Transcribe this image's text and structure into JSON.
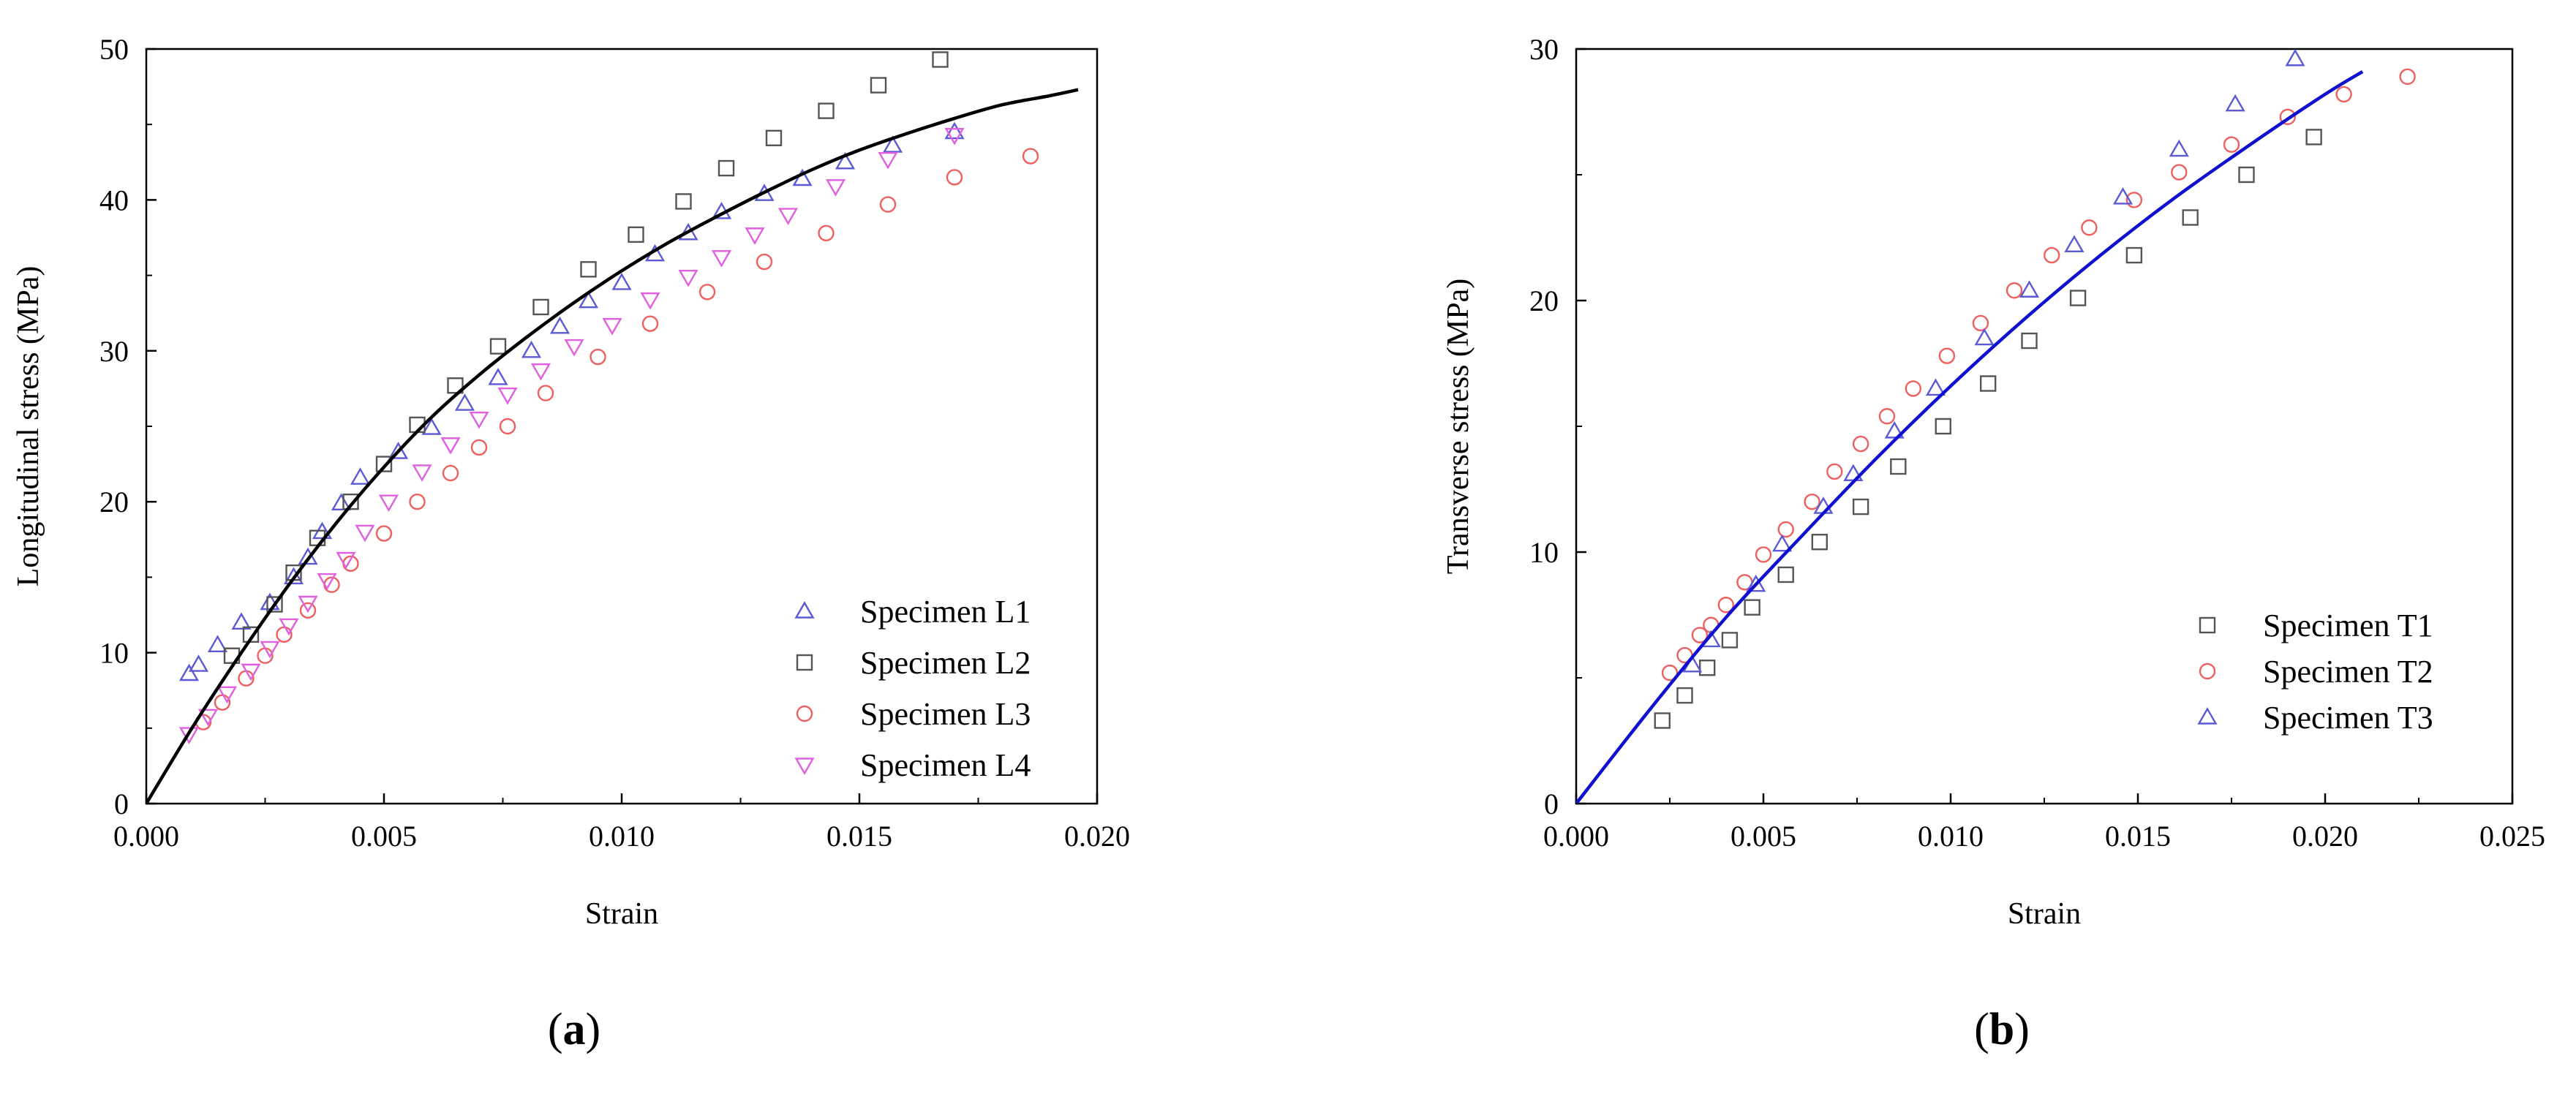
{
  "chart_data": [
    {
      "panel_label": "(a)",
      "type": "scatter",
      "xlabel": "Strain",
      "ylabel": "Longitudinal stress (MPa)",
      "xlim": [
        0,
        0.02
      ],
      "ylim": [
        0,
        50
      ],
      "xticks": [
        0,
        0.005,
        0.01,
        0.015,
        0.02
      ],
      "xtick_labels": [
        "0.000",
        "0.005",
        "0.010",
        "0.015",
        "0.020"
      ],
      "yticks": [
        0,
        10,
        20,
        30,
        40,
        50
      ],
      "ytick_labels": [
        "0",
        "10",
        "20",
        "30",
        "40",
        "50"
      ],
      "legend_position": "bottom-right",
      "series": [
        {
          "name": "Specimen L1",
          "marker": "triangle-up",
          "color": "#5a5ad6",
          "x": [
            0.0009,
            0.0011,
            0.0015,
            0.002,
            0.0026,
            0.0031,
            0.0034,
            0.0037,
            0.0041,
            0.0045,
            0.0053,
            0.006,
            0.0067,
            0.0074,
            0.0081,
            0.0087,
            0.0093,
            0.01,
            0.0107,
            0.0114,
            0.0121,
            0.013,
            0.0138,
            0.0147,
            0.0157,
            0.017
          ],
          "y": [
            8.6,
            9.2,
            10.5,
            12.0,
            13.3,
            15.0,
            16.3,
            18.0,
            19.9,
            21.6,
            23.3,
            24.9,
            26.5,
            28.2,
            30.0,
            31.6,
            33.3,
            34.5,
            36.4,
            37.8,
            39.2,
            40.4,
            41.4,
            42.5,
            43.6,
            44.5
          ]
        },
        {
          "name": "Specimen L2",
          "marker": "square",
          "color": "#555555",
          "x": [
            0.0018,
            0.0022,
            0.0027,
            0.0031,
            0.0036,
            0.0043,
            0.005,
            0.0057,
            0.0065,
            0.0074,
            0.0083,
            0.0093,
            0.0103,
            0.0113,
            0.0122,
            0.0132,
            0.0143,
            0.0154,
            0.0167
          ],
          "y": [
            9.8,
            11.2,
            13.2,
            15.3,
            17.6,
            20.0,
            22.5,
            25.1,
            27.7,
            30.3,
            32.9,
            35.4,
            37.7,
            39.9,
            42.1,
            44.1,
            45.9,
            47.6,
            49.3
          ]
        },
        {
          "name": "Specimen L3",
          "marker": "circle",
          "color": "#ee6060",
          "x": [
            0.0012,
            0.0016,
            0.0021,
            0.0025,
            0.0029,
            0.0034,
            0.0039,
            0.0043,
            0.005,
            0.0057,
            0.0064,
            0.007,
            0.0076,
            0.0084,
            0.0095,
            0.0106,
            0.0118,
            0.013,
            0.0143,
            0.0156,
            0.017,
            0.0186
          ],
          "y": [
            5.4,
            6.7,
            8.3,
            9.8,
            11.2,
            12.8,
            14.5,
            15.9,
            17.9,
            20.0,
            21.9,
            23.6,
            25.0,
            27.2,
            29.6,
            31.8,
            33.9,
            35.9,
            37.8,
            39.7,
            41.5,
            42.9
          ]
        },
        {
          "name": "Specimen L4",
          "marker": "triangle-down",
          "color": "#e060e0",
          "x": [
            0.0009,
            0.0013,
            0.0017,
            0.0022,
            0.0026,
            0.003,
            0.0034,
            0.0038,
            0.0042,
            0.0046,
            0.0051,
            0.0058,
            0.0064,
            0.007,
            0.0076,
            0.0083,
            0.009,
            0.0098,
            0.0106,
            0.0114,
            0.0121,
            0.0128,
            0.0135,
            0.0145,
            0.0156,
            0.017
          ],
          "y": [
            4.6,
            5.8,
            7.3,
            8.8,
            10.3,
            11.8,
            13.3,
            14.8,
            16.2,
            18.0,
            20.0,
            22.0,
            23.8,
            25.5,
            27.1,
            28.7,
            30.3,
            31.7,
            33.4,
            34.9,
            36.2,
            37.7,
            39.0,
            40.9,
            42.7,
            44.3
          ]
        }
      ],
      "fit_curve": {
        "color": "#000000",
        "x_max": 0.0196,
        "x": [
          0,
          0.001,
          0.002,
          0.003,
          0.004,
          0.005,
          0.006,
          0.007,
          0.008,
          0.009,
          0.01,
          0.011,
          0.012,
          0.013,
          0.014,
          0.015,
          0.016,
          0.017,
          0.018,
          0.019,
          0.0196
        ],
        "y": [
          0,
          5.2,
          10.0,
          14.5,
          18.6,
          22.3,
          25.6,
          28.4,
          30.9,
          33.2,
          35.3,
          37.2,
          38.9,
          40.5,
          42.0,
          43.3,
          44.4,
          45.4,
          46.3,
          46.9,
          47.3
        ]
      }
    },
    {
      "panel_label": "(b)",
      "type": "scatter",
      "xlabel": "Strain",
      "ylabel": "Transverse stress (MPa)",
      "xlim": [
        0,
        0.025
      ],
      "ylim": [
        0,
        30
      ],
      "xticks": [
        0,
        0.005,
        0.01,
        0.015,
        0.02,
        0.025
      ],
      "xtick_labels": [
        "0.000",
        "0.005",
        "0.010",
        "0.015",
        "0.020",
        "0.025"
      ],
      "yticks": [
        0,
        10,
        20,
        30
      ],
      "ytick_labels": [
        "0",
        "10",
        "20",
        "30"
      ],
      "legend_position": "bottom-right",
      "series": [
        {
          "name": "Specimen T1",
          "marker": "square",
          "color": "#555555",
          "x": [
            0.0023,
            0.0029,
            0.0035,
            0.0041,
            0.0047,
            0.0056,
            0.0065,
            0.0076,
            0.0086,
            0.0098,
            0.011,
            0.0121,
            0.0134,
            0.0149,
            0.0164,
            0.0179,
            0.0197
          ],
          "y": [
            3.3,
            4.3,
            5.4,
            6.5,
            7.8,
            9.1,
            10.4,
            11.8,
            13.4,
            15.0,
            16.7,
            18.4,
            20.1,
            21.8,
            23.3,
            25.0,
            26.5
          ]
        },
        {
          "name": "Specimen T2",
          "marker": "circle",
          "color": "#ee6060",
          "x": [
            0.0025,
            0.0029,
            0.0033,
            0.0036,
            0.004,
            0.0045,
            0.005,
            0.0056,
            0.0063,
            0.0069,
            0.0076,
            0.0083,
            0.009,
            0.0099,
            0.0108,
            0.0117,
            0.0127,
            0.0137,
            0.0149,
            0.0161,
            0.0175,
            0.019,
            0.0205,
            0.0222
          ],
          "y": [
            5.2,
            5.9,
            6.7,
            7.1,
            7.9,
            8.8,
            9.9,
            10.9,
            12.0,
            13.2,
            14.3,
            15.4,
            16.5,
            17.8,
            19.1,
            20.4,
            21.8,
            22.9,
            24.0,
            25.1,
            26.2,
            27.3,
            28.2,
            28.9
          ]
        },
        {
          "name": "Specimen T3",
          "marker": "triangle-up",
          "color": "#5a5ad6",
          "x": [
            0.0031,
            0.0036,
            0.0048,
            0.0055,
            0.0066,
            0.0074,
            0.0085,
            0.0096,
            0.0109,
            0.0121,
            0.0133,
            0.0146,
            0.0161,
            0.0176,
            0.0192
          ],
          "y": [
            5.5,
            6.5,
            8.7,
            10.3,
            11.8,
            13.1,
            14.8,
            16.5,
            18.5,
            20.4,
            22.2,
            24.1,
            26.0,
            27.8,
            29.6
          ]
        }
      ],
      "fit_curve": {
        "color": "#1010d0",
        "x_max": 0.021,
        "x": [
          0,
          0.002,
          0.004,
          0.006,
          0.008,
          0.01,
          0.012,
          0.014,
          0.016,
          0.018,
          0.02,
          0.021
        ],
        "y": [
          0,
          3.8,
          7.4,
          10.6,
          13.7,
          16.6,
          19.3,
          21.8,
          24.1,
          26.2,
          28.2,
          29.1
        ]
      }
    }
  ]
}
